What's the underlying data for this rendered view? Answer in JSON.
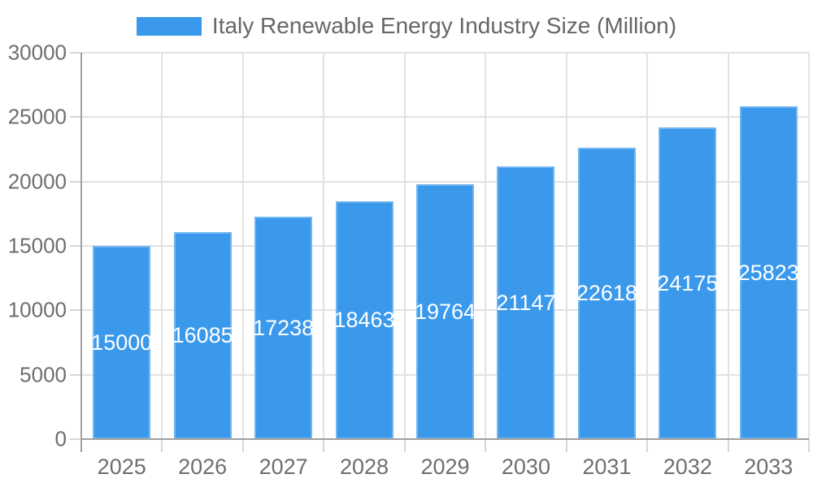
{
  "legend": {
    "label": "Italy Renewable Energy Industry Size (Million)",
    "swatch_color": "#3B99EC"
  },
  "chart_data": {
    "type": "bar",
    "title": "Italy Renewable Energy Industry Size (Million)",
    "series_name": "Italy Renewable Energy Industry Size (Million)",
    "categories": [
      "2025",
      "2026",
      "2027",
      "2028",
      "2029",
      "2030",
      "2031",
      "2032",
      "2033"
    ],
    "values": [
      15000,
      16085,
      17238,
      18463,
      19764,
      21147,
      22618,
      24175,
      25823
    ],
    "bar_value_labels": [
      "15000",
      "16085",
      "17238",
      "18463",
      "19764",
      "21147",
      "22618",
      "24175",
      "25823"
    ],
    "xlabel": "",
    "ylabel": "",
    "ylim": [
      0,
      30000
    ],
    "ytick_interval": 5000,
    "yticks": [
      0,
      5000,
      10000,
      15000,
      20000,
      25000,
      30000
    ],
    "ytick_labels": [
      "0",
      "5000",
      "10000",
      "15000",
      "20000",
      "25000",
      "30000"
    ],
    "grid": true,
    "legend_position": "top",
    "bar_label_position": "inside-center"
  },
  "colors": {
    "bar": "#3B99EC",
    "bar_label": "#FFFFFF",
    "gridline": "#E2E2E2",
    "axis_line": "#A0A0A0",
    "tick": "#D6D6D6",
    "axis_text": "#6E6E6E",
    "legend_text": "#666666",
    "background": "#FFFFFF"
  }
}
